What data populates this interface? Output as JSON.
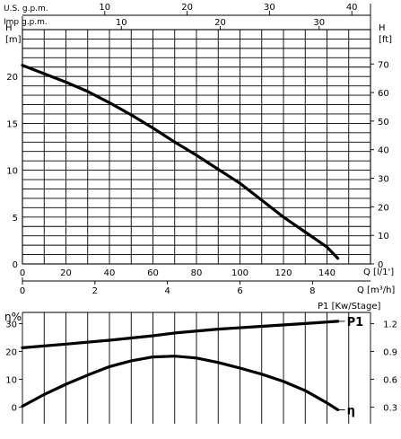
{
  "chart_data": [
    {
      "type": "line",
      "top_labels": {
        "us_gpm": "U.S. g.p.m.",
        "imp_gpm": "Imp g.p.m.",
        "us_ticks": [
          "10",
          "20",
          "30",
          "40"
        ],
        "imp_ticks": [
          "10",
          "20",
          "30"
        ]
      },
      "left_axis": {
        "title": "H",
        "unit": "[m]",
        "ticks": [
          "0",
          "5",
          "10",
          "15",
          "20"
        ],
        "ylim": [
          0,
          25
        ]
      },
      "right_axis": {
        "title": "H",
        "unit": "[ft]",
        "ticks": [
          "0",
          "10",
          "20",
          "30",
          "40",
          "50",
          "60",
          "70"
        ]
      },
      "x_axis_lmin": {
        "label": "Q [l/1']",
        "ticks": [
          "0",
          "20",
          "40",
          "60",
          "80",
          "100",
          "120",
          "140"
        ],
        "xlim": [
          0,
          160
        ]
      },
      "x_axis_m3h": {
        "label": "Q [m³/h]",
        "ticks": [
          "0",
          "2",
          "4",
          "6",
          "8"
        ]
      },
      "series": [
        {
          "x": [
            0,
            10,
            20,
            30,
            40,
            50,
            60,
            70,
            80,
            90,
            100,
            110,
            120,
            130,
            140,
            145
          ],
          "values": [
            21.2,
            20.3,
            19.4,
            18.4,
            17.2,
            15.9,
            14.5,
            13.0,
            11.6,
            10.1,
            8.6,
            6.8,
            5.0,
            3.4,
            1.8,
            0.6
          ]
        }
      ]
    },
    {
      "type": "line",
      "eta_axis": {
        "title": "η%",
        "ticks": [
          "0",
          "10",
          "20",
          "30"
        ],
        "ylim": [
          -6,
          34
        ]
      },
      "p1_axis": {
        "title": "P1 [Kw/Stage]",
        "ticks": [
          "0.3",
          "0.6",
          "0.9",
          "1.2"
        ]
      },
      "series": [
        {
          "name": "P1",
          "x": [
            0,
            20,
            40,
            60,
            70,
            90,
            110,
            130,
            145
          ],
          "values": [
            21.3,
            22.6,
            24.0,
            25.6,
            26.6,
            28.0,
            29.0,
            30.0,
            30.8
          ]
        },
        {
          "name": "η",
          "x": [
            0,
            10,
            20,
            30,
            40,
            50,
            60,
            70,
            80,
            90,
            100,
            110,
            120,
            130,
            140,
            145
          ],
          "values": [
            0.3,
            4.5,
            8.2,
            11.5,
            14.5,
            16.6,
            18.0,
            18.3,
            17.6,
            16.0,
            14.0,
            11.8,
            9.2,
            5.9,
            1.5,
            -1.0
          ]
        }
      ]
    }
  ]
}
